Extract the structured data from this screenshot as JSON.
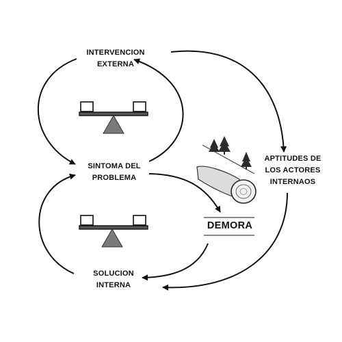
{
  "nodes": {
    "external": {
      "line1": "INTERVENCION",
      "line2": "EXTERNA"
    },
    "symptom": {
      "line1": "SINTOMA DEL",
      "line2": "PROBLEMA"
    },
    "internal_solution": {
      "line1": "SOLUCION",
      "line2": "INTERNA"
    },
    "actors": {
      "line1": "APTITUDES DE",
      "line2": "LOS ACTORES",
      "line3": "INTERNAOS"
    }
  },
  "delay_label": "DEMORA",
  "colors": {
    "ink": "#111111",
    "fulcrum": "#7a7a7a",
    "tree": "#2b2b2b"
  },
  "icons": [
    "balance-scale-icon",
    "log-icon",
    "pine-tree-icon"
  ]
}
